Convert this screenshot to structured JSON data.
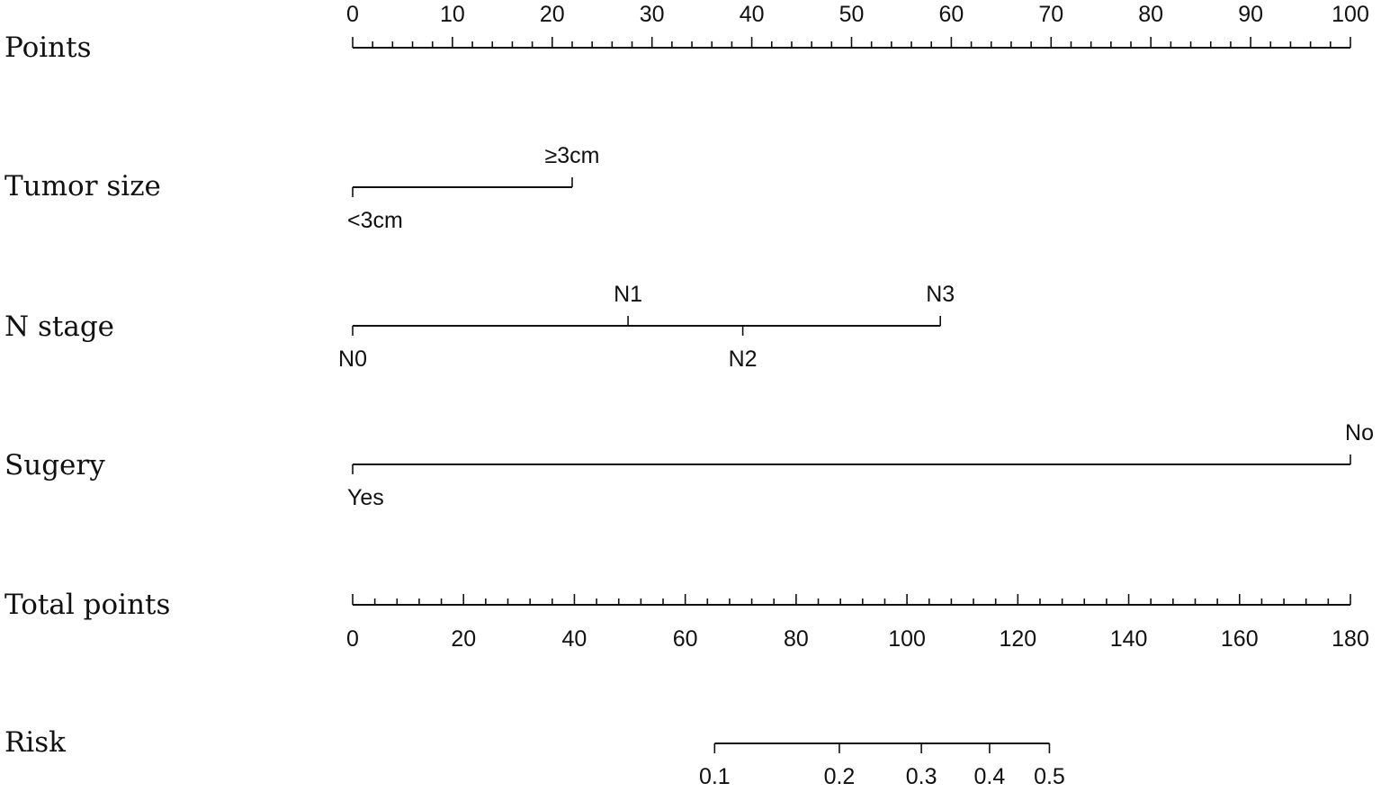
{
  "chart_data": {
    "type": "nomogram",
    "title": "",
    "rows": [
      {
        "id": "points",
        "label": "Points",
        "kind": "scale",
        "range": [
          0,
          100
        ],
        "major_ticks": [
          0,
          10,
          20,
          30,
          40,
          50,
          60,
          70,
          80,
          90,
          100
        ],
        "minor_step": 2,
        "label_side": "above"
      },
      {
        "id": "tumor-size",
        "label": "Tumor size",
        "kind": "categorical",
        "levels": [
          {
            "label": "<3cm",
            "points": 0,
            "label_side": "below"
          },
          {
            "label": "≥3cm",
            "points": 22,
            "label_side": "above"
          }
        ]
      },
      {
        "id": "n-stage",
        "label": "N stage",
        "kind": "categorical",
        "levels": [
          {
            "label": "N0",
            "points": 0,
            "label_side": "below"
          },
          {
            "label": "N1",
            "points": 27.6,
            "label_side": "above"
          },
          {
            "label": "N2",
            "points": 39.1,
            "label_side": "below"
          },
          {
            "label": "N3",
            "points": 58.9,
            "label_side": "above"
          }
        ]
      },
      {
        "id": "surgery",
        "label": "Sugery",
        "kind": "categorical",
        "levels": [
          {
            "label": "Yes",
            "points": 0,
            "label_side": "below"
          },
          {
            "label": "No",
            "points": 100,
            "label_side": "above"
          }
        ]
      },
      {
        "id": "total-points",
        "label": "Total points",
        "kind": "scale",
        "range": [
          0,
          180
        ],
        "major_ticks": [
          0,
          20,
          40,
          60,
          80,
          100,
          120,
          140,
          160,
          180
        ],
        "minor_step": 4,
        "label_side": "below"
      },
      {
        "id": "risk",
        "label": "Risk",
        "kind": "mapped-scale",
        "ticks": [
          {
            "label": "0.1",
            "total_points": 65.3
          },
          {
            "label": "0.2",
            "total_points": 87.8
          },
          {
            "label": "0.3",
            "total_points": 102.6
          },
          {
            "label": "0.4",
            "total_points": 114.9
          },
          {
            "label": "0.5",
            "total_points": 125.7
          }
        ],
        "label_side": "below"
      }
    ]
  }
}
